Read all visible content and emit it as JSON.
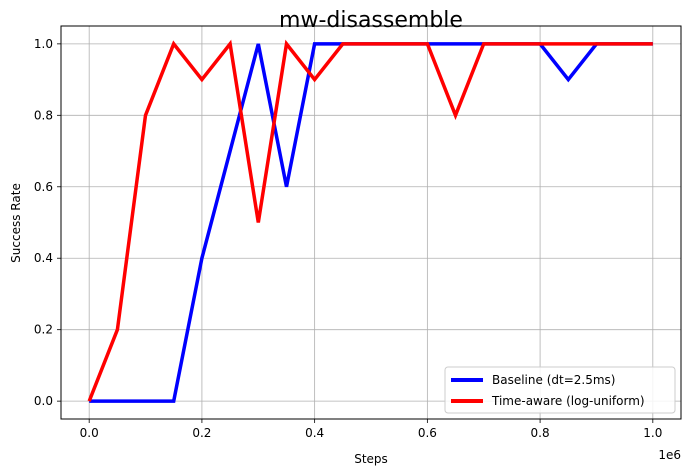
{
  "chart_data": {
    "type": "line",
    "title": "mw-disassemble",
    "xlabel": "Steps",
    "ylabel": "Success Rate",
    "x_offset_label": "1e6",
    "x": [
      0,
      0.05,
      0.1,
      0.15,
      0.2,
      0.25,
      0.3,
      0.35,
      0.4,
      0.45,
      0.5,
      0.55,
      0.6,
      0.65,
      0.7,
      0.75,
      0.8,
      0.85,
      0.9,
      0.95,
      1.0
    ],
    "xlim": [
      -0.05,
      1.05
    ],
    "ylim": [
      -0.05,
      1.05
    ],
    "xticks": [
      0.0,
      0.2,
      0.4,
      0.6,
      0.8,
      1.0
    ],
    "xtick_labels": [
      "0.0",
      "0.2",
      "0.4",
      "0.6",
      "0.8",
      "1.0"
    ],
    "yticks": [
      0.0,
      0.2,
      0.4,
      0.6,
      0.8,
      1.0
    ],
    "ytick_labels": [
      "0.0",
      "0.2",
      "0.4",
      "0.6",
      "0.8",
      "1.0"
    ],
    "grid": true,
    "legend_position": "bottom-right",
    "series": [
      {
        "name": "Baseline (dt=2.5ms)",
        "color": "#0000ff",
        "values": [
          0.0,
          0.0,
          0.0,
          0.0,
          0.4,
          0.7,
          1.0,
          0.6,
          1.0,
          1.0,
          1.0,
          1.0,
          1.0,
          1.0,
          1.0,
          1.0,
          1.0,
          0.9,
          1.0,
          1.0,
          1.0
        ]
      },
      {
        "name": "Time-aware (log-uniform)",
        "color": "#ff0000",
        "values": [
          0.0,
          0.2,
          0.8,
          1.0,
          0.9,
          1.0,
          0.5,
          1.0,
          0.9,
          1.0,
          1.0,
          1.0,
          1.0,
          0.8,
          1.0,
          1.0,
          1.0,
          1.0,
          1.0,
          1.0,
          1.0
        ]
      }
    ]
  }
}
